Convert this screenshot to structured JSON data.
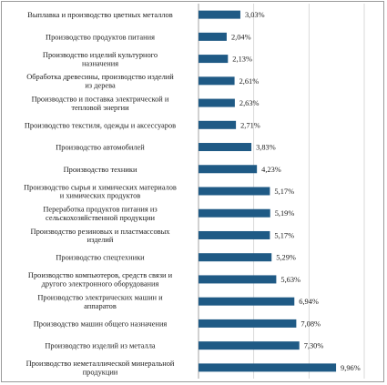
{
  "chart_data": {
    "type": "bar",
    "orientation": "horizontal",
    "categories": [
      [
        "Выплавка и производство цветных металлов"
      ],
      [
        "Производство продуктов питания"
      ],
      [
        "Производство изделий культурного",
        "назначения"
      ],
      [
        "Обработка древесины, производство изделий",
        "из дерева"
      ],
      [
        "Производство и поставка электрической и",
        "тепловой энергии"
      ],
      [
        "Производство текстиля, одежды и аксессуаров"
      ],
      [
        "Производство автомобилей"
      ],
      [
        "Производство техники"
      ],
      [
        "Производство сырья и химических материалов",
        "и химических продуктов"
      ],
      [
        "Переработка продуктов питания из",
        "сельскохозяйственной продукции"
      ],
      [
        "Производство резиновых и пластмассовых",
        "изделий"
      ],
      [
        "Производство спецтехники"
      ],
      [
        "Производство компьютеров, средств связи и",
        "другого электронного оборудования"
      ],
      [
        "Производство электрических машин и",
        "аппаратов"
      ],
      [
        "Производство машин общего назначения"
      ],
      [
        "Производство изделий из металла"
      ],
      [
        "Производство неметаллической минеральной",
        "продукции"
      ]
    ],
    "values": [
      3.03,
      2.04,
      2.13,
      2.61,
      2.63,
      2.71,
      3.83,
      4.23,
      5.17,
      5.19,
      5.17,
      5.29,
      5.63,
      6.94,
      7.08,
      7.3,
      9.96
    ],
    "value_labels": [
      "3,03%",
      "2,04%",
      "2,13%",
      "2,61%",
      "2,63%",
      "2,71%",
      "3,83%",
      "4,23%",
      "5,17%",
      "5,19%",
      "5,17%",
      "5,29%",
      "5,63%",
      "6,94%",
      "7,08%",
      "7,30%",
      "9,96%"
    ],
    "xlim": [
      0,
      12
    ],
    "gridlines": [
      0,
      4,
      8,
      12
    ],
    "grid": true,
    "legend": "none",
    "title": "",
    "xlabel": "",
    "ylabel": "",
    "colors": {
      "bar": "#1f5a85",
      "grid": "#d0d0d0",
      "text": "#1a1a1a"
    }
  }
}
